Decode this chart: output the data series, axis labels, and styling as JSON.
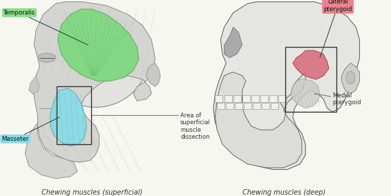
{
  "bg_color": "#f7f7f2",
  "left_title": "Chewing muscles (superficial)",
  "right_title": "Chewing muscles (deep)",
  "temporalis_label": "Temporalis",
  "masseter_label": "Masseter",
  "lateral_pterygoid_label": "Lateral\npterygoid",
  "medial_pterygoid_label": "Medial\npterygoid",
  "area_label": "Area of\nsuperficial\nmuscle\ndissection",
  "green_color": "#7cd87c",
  "cyan_color": "#82dce8",
  "pink_color": "#d97080",
  "label_green_bg": "#88e088",
  "label_cyan_bg": "#82dce8",
  "label_pink_bg": "#e8848e",
  "gray_face": "#d0d0cc",
  "gray_muscle": "#b8b8b4",
  "dark_line": "#444444",
  "title_fontsize": 7.0,
  "label_fontsize": 6.2,
  "annot_fontsize": 6.0
}
